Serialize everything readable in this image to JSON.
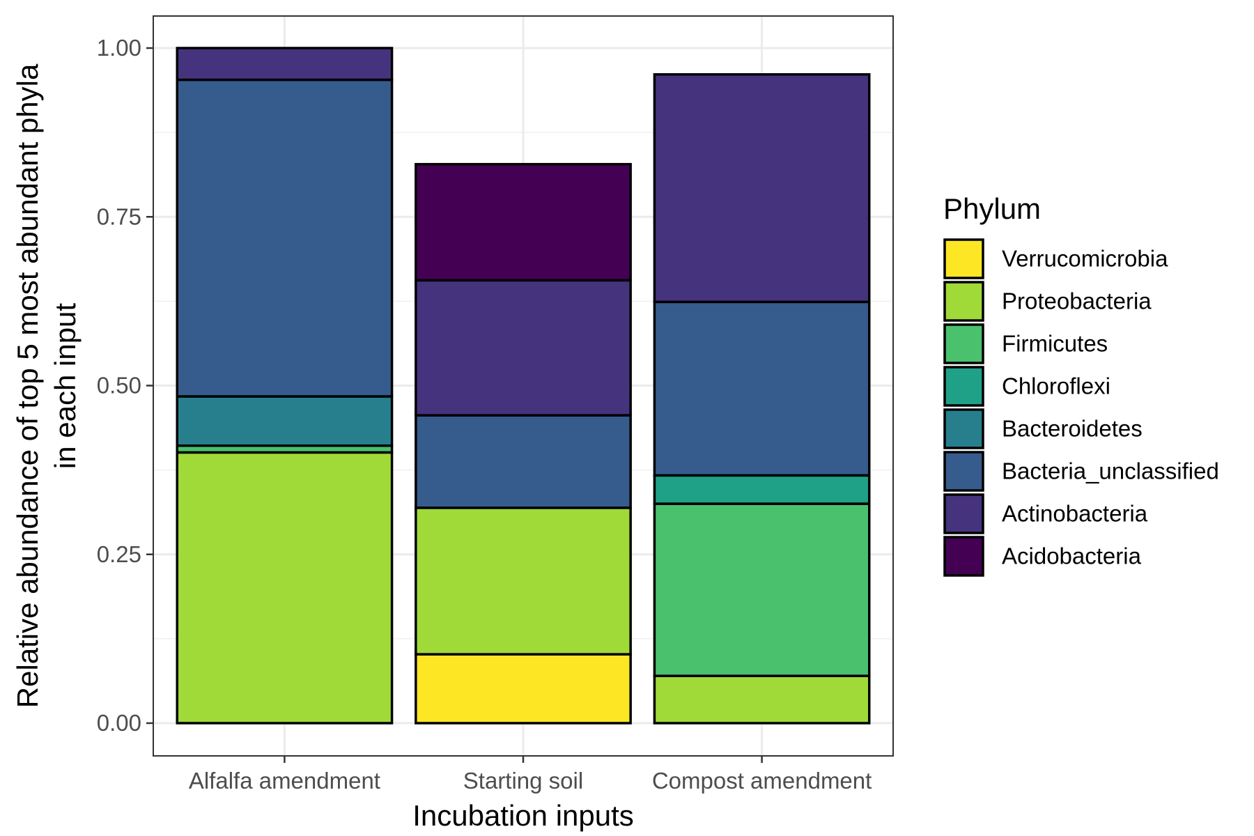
{
  "chart_data": {
    "type": "bar",
    "stacked": true,
    "categories": [
      "Alfalfa amendment",
      "Starting soil",
      "Compost amendment"
    ],
    "xlabel": "Incubation inputs",
    "ylabel_lines": [
      "Relative abundance of top 5 most abundant phyla",
      "in each input"
    ],
    "ylim": [
      0,
      1
    ],
    "yticks": [
      "0.00",
      "0.25",
      "0.50",
      "0.75",
      "1.00"
    ],
    "grid": true,
    "legend": {
      "title": "Phylum",
      "placement": "right"
    },
    "series": [
      {
        "name": "Verrucomicrobia",
        "color": "#FDE725",
        "values": [
          0,
          0.102,
          0
        ]
      },
      {
        "name": "Proteobacteria",
        "color": "#A0DA39",
        "values": [
          0.401,
          0.217,
          0.07
        ]
      },
      {
        "name": "Firmicutes",
        "color": "#4AC16D",
        "values": [
          0.01,
          0,
          0.255
        ]
      },
      {
        "name": "Chloroflexi",
        "color": "#1FA187",
        "values": [
          0,
          0,
          0.042
        ]
      },
      {
        "name": "Bacteroidetes",
        "color": "#277F8E",
        "values": [
          0.073,
          0,
          0
        ]
      },
      {
        "name": "Bacteria_unclassified",
        "color": "#365C8D",
        "values": [
          0.469,
          0.137,
          0.257
        ]
      },
      {
        "name": "Actinobacteria",
        "color": "#46337E",
        "values": [
          0.047,
          0.2,
          0.337
        ]
      },
      {
        "name": "Acidobacteria",
        "color": "#440154",
        "values": [
          0,
          0.172,
          0
        ]
      }
    ]
  }
}
